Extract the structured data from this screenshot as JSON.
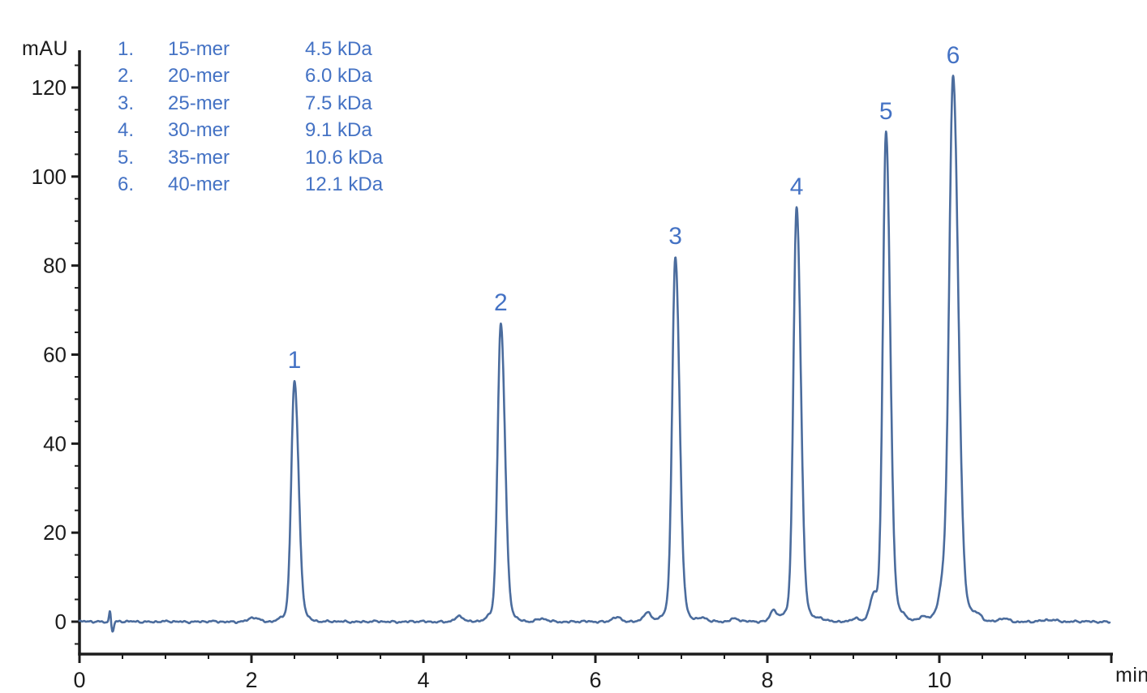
{
  "figure": {
    "kind": "size-exclusion chromatogram of oligonucleotide ladder",
    "background": "#ffffff"
  },
  "legend": {
    "items": [
      {
        "num": "1.",
        "name": "15-mer",
        "mass": "4.5 kDa"
      },
      {
        "num": "2.",
        "name": "20-mer",
        "mass": "6.0 kDa"
      },
      {
        "num": "3.",
        "name": "25-mer",
        "mass": "7.5 kDa"
      },
      {
        "num": "4.",
        "name": "30-mer",
        "mass": "9.1 kDa"
      },
      {
        "num": "5.",
        "name": "35-mer",
        "mass": "10.6 kDa"
      },
      {
        "num": "6.",
        "name": "40-mer",
        "mass": "12.1 kDa"
      }
    ]
  },
  "chart_data": {
    "type": "line",
    "title": "",
    "xlabel": "min",
    "ylabel": "mAU",
    "x_range": [
      0,
      12
    ],
    "y_range": [
      -5,
      125
    ],
    "x_major_ticks": [
      0,
      2,
      4,
      6,
      8,
      10
    ],
    "x_axis_end_tick": 12,
    "x_minor_tick_interval": 0.5,
    "y_major_ticks": [
      0,
      20,
      40,
      60,
      80,
      100,
      120
    ],
    "y_minor_tick_interval": 5,
    "grid": false,
    "legend_position": "top-left",
    "series": [
      {
        "name": "UV absorbance trace",
        "baseline_mau": 0,
        "peaks": [
          {
            "label": "1",
            "name": "15-mer",
            "mass": "4.5 kDa",
            "rt_min": 2.5,
            "height_mau": 54
          },
          {
            "label": "2",
            "name": "20-mer",
            "mass": "6.0 kDa",
            "rt_min": 4.9,
            "height_mau": 67
          },
          {
            "label": "3",
            "name": "25-mer",
            "mass": "7.5 kDa",
            "rt_min": 6.93,
            "height_mau": 82
          },
          {
            "label": "4",
            "name": "30-mer",
            "mass": "9.1 kDa",
            "rt_min": 8.34,
            "height_mau": 93
          },
          {
            "label": "5",
            "name": "35-mer",
            "mass": "10.6 kDa",
            "rt_min": 9.38,
            "height_mau": 110
          },
          {
            "label": "6",
            "name": "40-mer",
            "mass": "12.1 kDa",
            "rt_min": 10.16,
            "height_mau": 122.5
          }
        ],
        "minor_features": [
          {
            "rt": 0.355,
            "h": 2.6,
            "w": 0.01
          },
          {
            "rt": 0.385,
            "h": -2.2,
            "w": 0.014
          },
          {
            "rt": 2.03,
            "h": 0.9,
            "w": 0.055
          },
          {
            "rt": 4.42,
            "h": 1.1,
            "w": 0.05
          },
          {
            "rt": 5.38,
            "h": 0.6,
            "w": 0.06
          },
          {
            "rt": 6.24,
            "h": 1.0,
            "w": 0.05
          },
          {
            "rt": 6.6,
            "h": 2.1,
            "w": 0.045
          },
          {
            "rt": 7.25,
            "h": 0.8,
            "w": 0.05
          },
          {
            "rt": 7.62,
            "h": 0.7,
            "w": 0.055
          },
          {
            "rt": 8.07,
            "h": 2.5,
            "w": 0.04
          },
          {
            "rt": 8.62,
            "h": 0.7,
            "w": 0.05
          },
          {
            "rt": 9.02,
            "h": 0.9,
            "w": 0.04
          },
          {
            "rt": 9.23,
            "h": 4.3,
            "w": 0.038
          },
          {
            "rt": 9.57,
            "h": 0.9,
            "w": 0.05
          },
          {
            "rt": 9.8,
            "h": 1.0,
            "w": 0.05
          },
          {
            "rt": 10.04,
            "h": 4.5,
            "w": 0.042
          },
          {
            "rt": 10.45,
            "h": 1.3,
            "w": 0.05
          },
          {
            "rt": 10.75,
            "h": 0.7,
            "w": 0.055
          },
          {
            "rt": 11.3,
            "h": 0.4,
            "w": 0.08
          }
        ]
      }
    ],
    "colors": {
      "trace": "#4b6c9d",
      "peak_labels": "#4472c4",
      "legend_text": "#4472c4",
      "axis": "#1c1c1c"
    }
  }
}
